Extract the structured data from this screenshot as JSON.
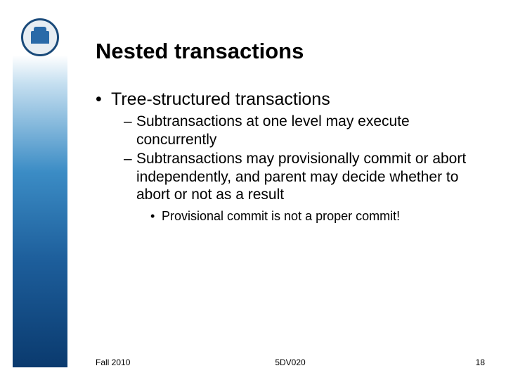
{
  "slide": {
    "title": "Nested transactions",
    "bullets": {
      "l1": "Tree-structured transactions",
      "l2a": "Subtransactions at one level may execute concurrently",
      "l2b": "Subtransactions may provisionally commit or abort independently, and parent may decide whether to abort or not as a result",
      "l3": "Provisional commit is not a proper commit!"
    }
  },
  "footer": {
    "left": "Fall 2010",
    "center": "5DV020",
    "page": "18"
  },
  "styling": {
    "title_fontsize": 31,
    "l1_fontsize": 25,
    "l2_fontsize": 21,
    "l3_fontsize": 18,
    "footer_fontsize": 12,
    "text_color": "#000000",
    "background_color": "#ffffff",
    "sidebar_gradient_top": "#ffffff",
    "sidebar_gradient_mid": "#3b8cc5",
    "sidebar_gradient_bottom": "#0a3a6e",
    "logo_ring_color": "#1a4a7a",
    "logo_fill_color": "#2a6aa8"
  }
}
